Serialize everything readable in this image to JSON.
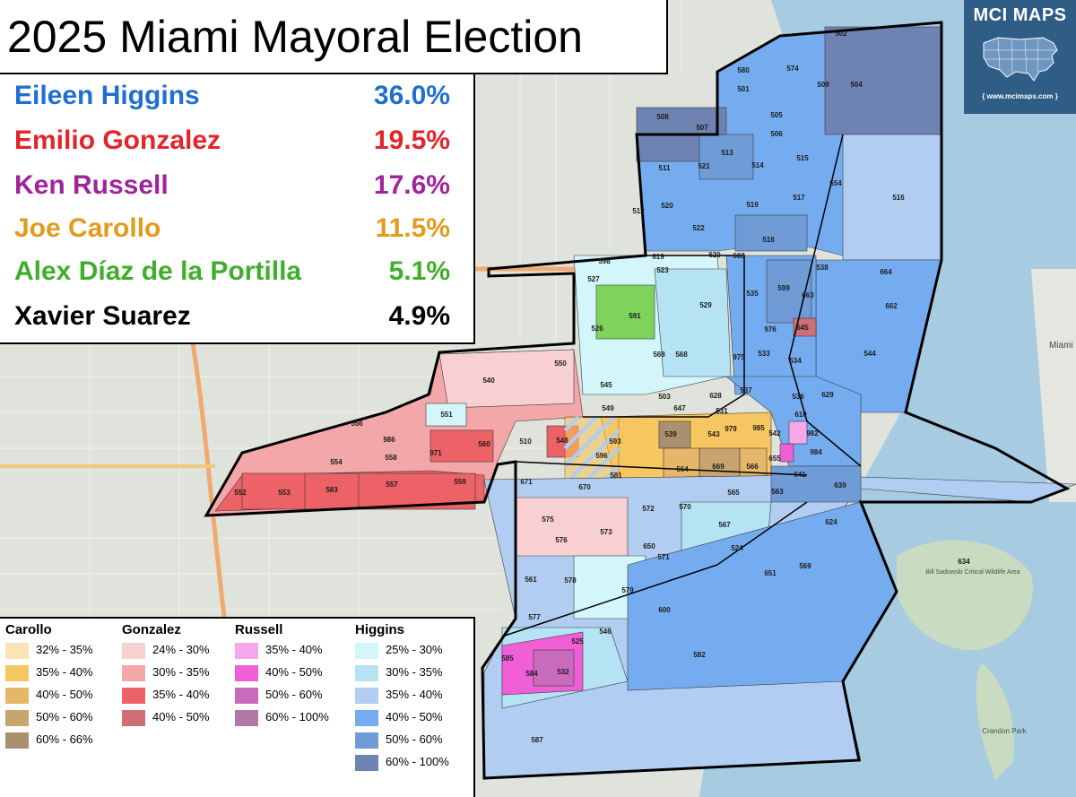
{
  "title": "2025 Miami Mayoral Election",
  "results": [
    {
      "name": "Eileen Higgins",
      "pct": "36.0%",
      "color": "#1f6fd1"
    },
    {
      "name": "Emilio Gonzalez",
      "pct": "19.5%",
      "color": "#e3242b"
    },
    {
      "name": "Ken Russell",
      "pct": "17.6%",
      "color": "#a0239e"
    },
    {
      "name": "Joe Carollo",
      "pct": "11.5%",
      "color": "#e39b1c"
    },
    {
      "name": "Alex Díaz de la Portilla",
      "pct": "5.1%",
      "color": "#3fae2a"
    },
    {
      "name": "Xavier Suarez",
      "pct": "4.9%",
      "color": "#000000"
    }
  ],
  "logo": {
    "title": "MCI MAPS",
    "url": "{ www.mcimaps.com }",
    "icon": "usa-map-icon"
  },
  "legend": [
    {
      "candidate": "Carollo",
      "items": [
        {
          "label": "32% - 35%",
          "color": "#fbe3b3"
        },
        {
          "label": "35% - 40%",
          "color": "#f6c660"
        },
        {
          "label": "40% - 50%",
          "color": "#e6b769"
        },
        {
          "label": "50% - 60%",
          "color": "#c8a46e"
        },
        {
          "label": "60% - 66%",
          "color": "#a9916f"
        }
      ]
    },
    {
      "candidate": "Gonzalez",
      "items": [
        {
          "label": "24% - 30%",
          "color": "#f8d0d1"
        },
        {
          "label": "30% - 35%",
          "color": "#f4a7a9"
        },
        {
          "label": "35% - 40%",
          "color": "#ec6266"
        },
        {
          "label": "40% - 50%",
          "color": "#cd6f75"
        }
      ]
    },
    {
      "candidate": "Russell",
      "items": [
        {
          "label": "35% - 40%",
          "color": "#f7a8ea"
        },
        {
          "label": "40% - 50%",
          "color": "#f15fd6"
        },
        {
          "label": "50% - 60%",
          "color": "#c86bbd"
        },
        {
          "label": "60% - 100%",
          "color": "#b079a7"
        }
      ]
    },
    {
      "candidate": "Higgins",
      "items": [
        {
          "label": "25% - 30%",
          "color": "#d3f6fb"
        },
        {
          "label": "30% - 35%",
          "color": "#b5e3f4"
        },
        {
          "label": "35% - 40%",
          "color": "#b1cdf2"
        },
        {
          "label": "40% - 50%",
          "color": "#75acf0"
        },
        {
          "label": "50% - 60%",
          "color": "#6f9bd6"
        },
        {
          "label": "60% - 100%",
          "color": "#6f83b3"
        }
      ]
    }
  ],
  "precincts": [
    "502",
    "504",
    "509",
    "574",
    "580",
    "501",
    "505",
    "506",
    "508",
    "507",
    "513",
    "514",
    "515",
    "511",
    "521",
    "512",
    "520",
    "519",
    "517",
    "522",
    "518",
    "516",
    "654",
    "598",
    "619",
    "620",
    "603",
    "527",
    "523",
    "538",
    "664",
    "591",
    "535",
    "599",
    "663",
    "662",
    "526",
    "529",
    "568",
    "976",
    "645",
    "544",
    "540",
    "550",
    "568",
    "975",
    "533",
    "534",
    "545",
    "537",
    "503",
    "628",
    "647",
    "531",
    "536",
    "629",
    "549",
    "551",
    "556",
    "986",
    "979",
    "985",
    "542",
    "982",
    "610",
    "593",
    "539",
    "543",
    "560",
    "510",
    "548",
    "554",
    "558",
    "971",
    "596",
    "564",
    "669",
    "566",
    "984",
    "655",
    "581",
    "641",
    "639",
    "565",
    "552",
    "553",
    "583",
    "557",
    "559",
    "671",
    "670",
    "563",
    "572",
    "570",
    "575",
    "567",
    "624",
    "576",
    "573",
    "650",
    "571",
    "524",
    "651",
    "569",
    "634",
    "561",
    "578",
    "579",
    "600",
    "577",
    "525",
    "546",
    "582",
    "585",
    "584",
    "532",
    "587"
  ],
  "map_labels": {
    "water_right": "Miami Beach",
    "island": "Bill Sadowski Critical Wildlife Area",
    "park": "Crandon Park"
  }
}
